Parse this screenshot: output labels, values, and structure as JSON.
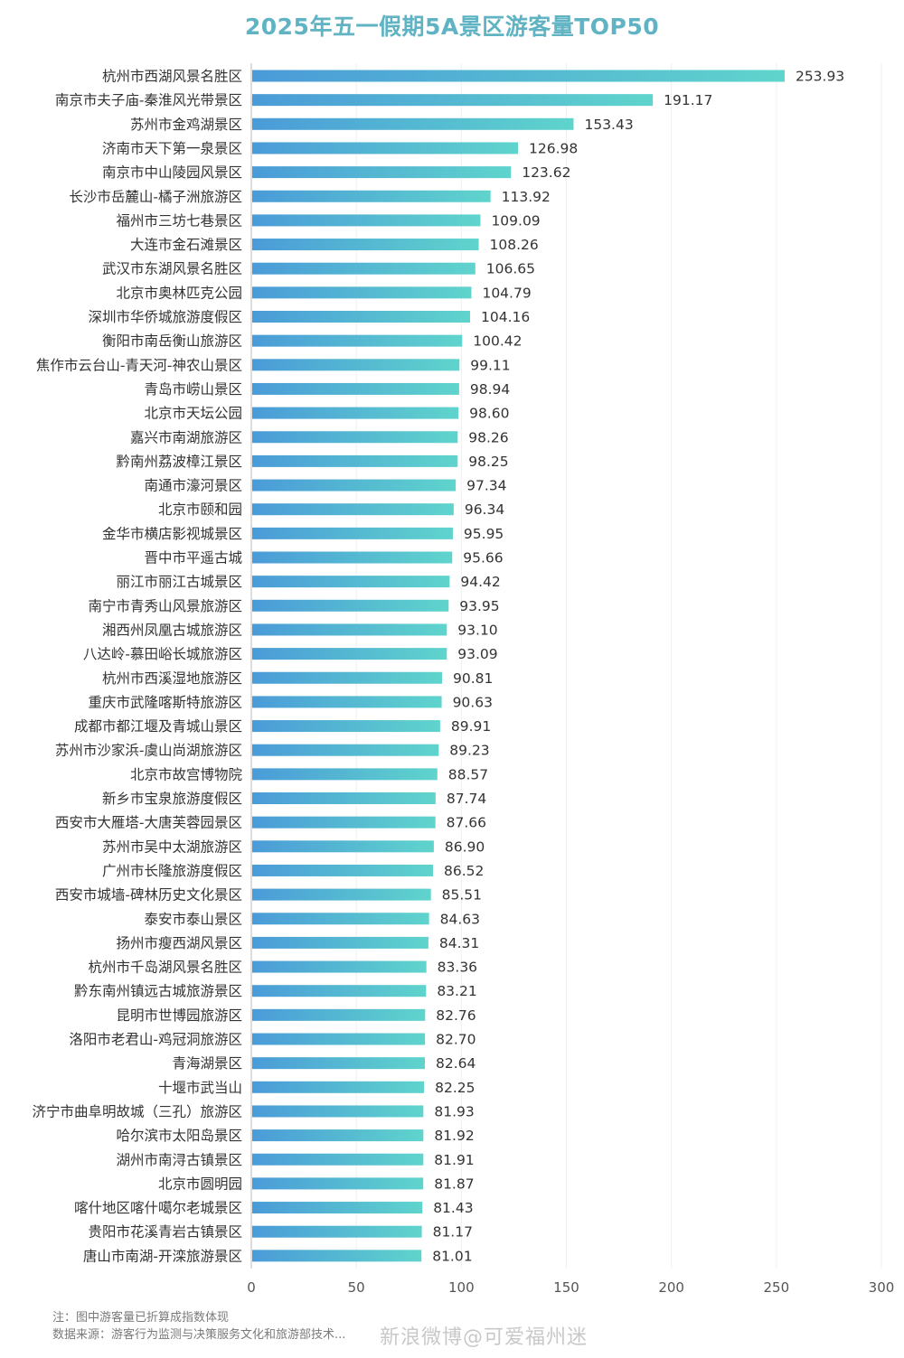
{
  "chart_data": {
    "type": "bar",
    "orientation": "horizontal",
    "title": "2025年五一假期5A景区游客量TOP50",
    "xlim": [
      0,
      300
    ],
    "xticks": [
      0,
      50,
      100,
      150,
      200,
      250,
      300
    ],
    "grid": true,
    "bar_color_start": "#4a9bd8",
    "bar_color_end": "#5fd4cc",
    "categories": [
      "杭州市西湖风景名胜区",
      "南京市夫子庙-秦淮风光带景区",
      "苏州市金鸡湖景区",
      "济南市天下第一泉景区",
      "南京市中山陵园风景区",
      "长沙市岳麓山-橘子洲旅游区",
      "福州市三坊七巷景区",
      "大连市金石滩景区",
      "武汉市东湖风景名胜区",
      "北京市奥林匹克公园",
      "深圳市华侨城旅游度假区",
      "衡阳市南岳衡山旅游区",
      "焦作市云台山-青天河-神农山景区",
      "青岛市崂山景区",
      "北京市天坛公园",
      "嘉兴市南湖旅游区",
      "黔南州荔波樟江景区",
      "南通市濠河景区",
      "北京市颐和园",
      "金华市横店影视城景区",
      "晋中市平遥古城",
      "丽江市丽江古城景区",
      "南宁市青秀山风景旅游区",
      "湘西州凤凰古城旅游区",
      "八达岭-慕田峪长城旅游区",
      "杭州市西溪湿地旅游区",
      "重庆市武隆喀斯特旅游区",
      "成都市都江堰及青城山景区",
      "苏州市沙家浜-虞山尚湖旅游区",
      "北京市故宫博物院",
      "新乡市宝泉旅游度假区",
      "西安市大雁塔-大唐芙蓉园景区",
      "苏州市吴中太湖旅游区",
      "广州市长隆旅游度假区",
      "西安市城墙-碑林历史文化景区",
      "泰安市泰山景区",
      "扬州市瘦西湖风景区",
      "杭州市千岛湖风景名胜区",
      "黔东南州镇远古城旅游景区",
      "昆明市世博园旅游区",
      "洛阳市老君山-鸡冠洞旅游区",
      "青海湖景区",
      "十堰市武当山",
      "济宁市曲阜明故城（三孔）旅游区",
      "哈尔滨市太阳岛景区",
      "湖州市南浔古镇景区",
      "北京市圆明园",
      "喀什地区喀什噶尔老城景区",
      "贵阳市花溪青岩古镇景区",
      "唐山市南湖-开滦旅游景区"
    ],
    "values": [
      253.93,
      191.17,
      153.43,
      126.98,
      123.62,
      113.92,
      109.09,
      108.26,
      106.65,
      104.79,
      104.16,
      100.42,
      99.11,
      98.94,
      98.6,
      98.26,
      98.25,
      97.34,
      96.34,
      95.95,
      95.66,
      94.42,
      93.95,
      93.1,
      93.09,
      90.81,
      90.63,
      89.91,
      89.23,
      88.57,
      87.74,
      87.66,
      86.9,
      86.52,
      85.51,
      84.63,
      84.31,
      83.36,
      83.21,
      82.76,
      82.7,
      82.64,
      82.25,
      81.93,
      81.92,
      81.91,
      81.87,
      81.43,
      81.17,
      81.01
    ],
    "value_labels": [
      "253.93",
      "191.17",
      "153.43",
      "126.98",
      "123.62",
      "113.92",
      "109.09",
      "108.26",
      "106.65",
      "104.79",
      "104.16",
      "100.42",
      "99.11",
      "98.94",
      "98.60",
      "98.26",
      "98.25",
      "97.34",
      "96.34",
      "95.95",
      "95.66",
      "94.42",
      "93.95",
      "93.10",
      "93.09",
      "90.81",
      "90.63",
      "89.91",
      "89.23",
      "88.57",
      "87.74",
      "87.66",
      "86.90",
      "86.52",
      "85.51",
      "84.63",
      "84.31",
      "83.36",
      "83.21",
      "82.76",
      "82.70",
      "82.64",
      "82.25",
      "81.93",
      "81.92",
      "81.91",
      "81.87",
      "81.43",
      "81.17",
      "81.01"
    ]
  },
  "notes": {
    "note": "注：图中游客量已折算成指数体现",
    "source": "数据来源：游客行为监测与决策服务文化和旅游部技术..."
  },
  "watermark": "新浪微博@可爱福州迷"
}
